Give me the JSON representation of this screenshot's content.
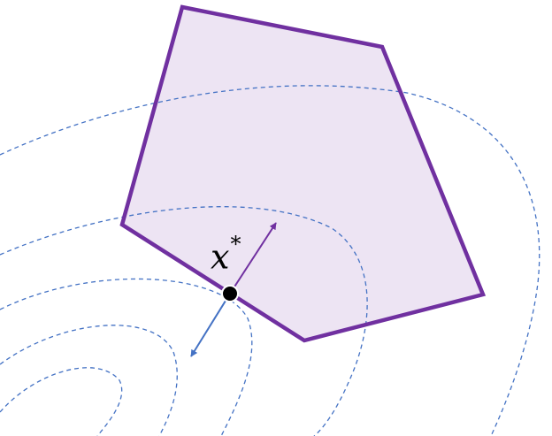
{
  "diagram": {
    "label": {
      "symbol": "x",
      "superscript": "*"
    },
    "colors": {
      "region_stroke": "#7030a0",
      "region_fill": "#ede4f3",
      "contour": "#4472c4",
      "constraint_normal": "#7030a0",
      "objective_gradient": "#4472c4",
      "optimum_point": "#000000"
    }
  }
}
